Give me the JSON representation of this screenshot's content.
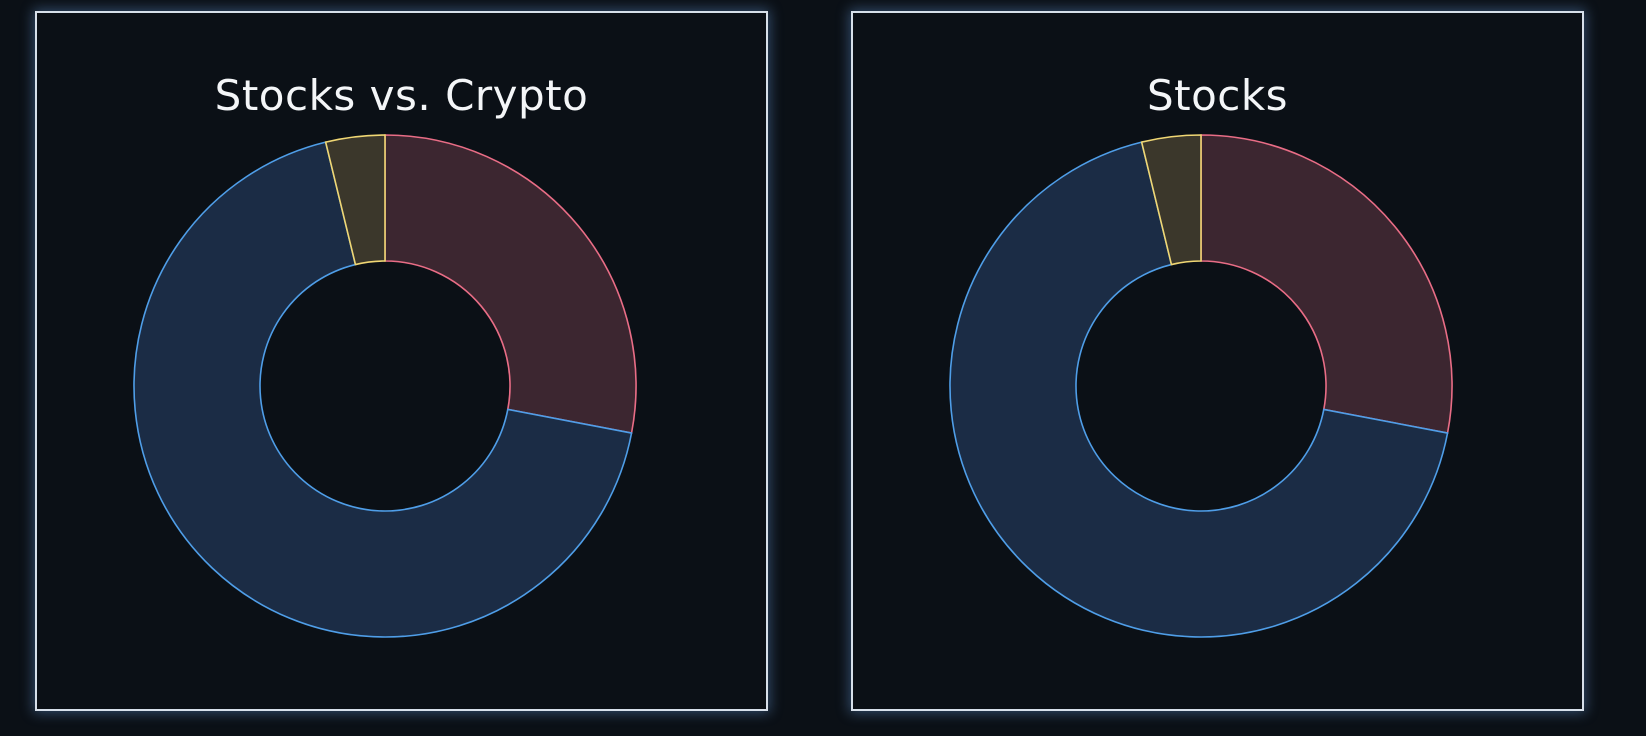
{
  "colors": {
    "background": "#0b1016",
    "panel_border": "#d7e0ea",
    "title_text": "#f4f6f8"
  },
  "chart_data": [
    {
      "type": "pie",
      "title": "Stocks vs. Crypto",
      "donut": true,
      "slices": [
        {
          "value": 28.0,
          "color": "#e96d86",
          "fill": "#3c2630"
        },
        {
          "value": 68.2,
          "color": "#4f9ee8",
          "fill": "#1b2c45"
        },
        {
          "value": 3.8,
          "color": "#f0d774",
          "fill": "#3b372b"
        }
      ]
    },
    {
      "type": "pie",
      "title": "Stocks",
      "donut": true,
      "slices": [
        {
          "value": 28.0,
          "color": "#e96d86",
          "fill": "#3c2630"
        },
        {
          "value": 68.2,
          "color": "#4f9ee8",
          "fill": "#1b2c45"
        },
        {
          "value": 3.8,
          "color": "#f0d774",
          "fill": "#3b372b"
        }
      ]
    }
  ]
}
